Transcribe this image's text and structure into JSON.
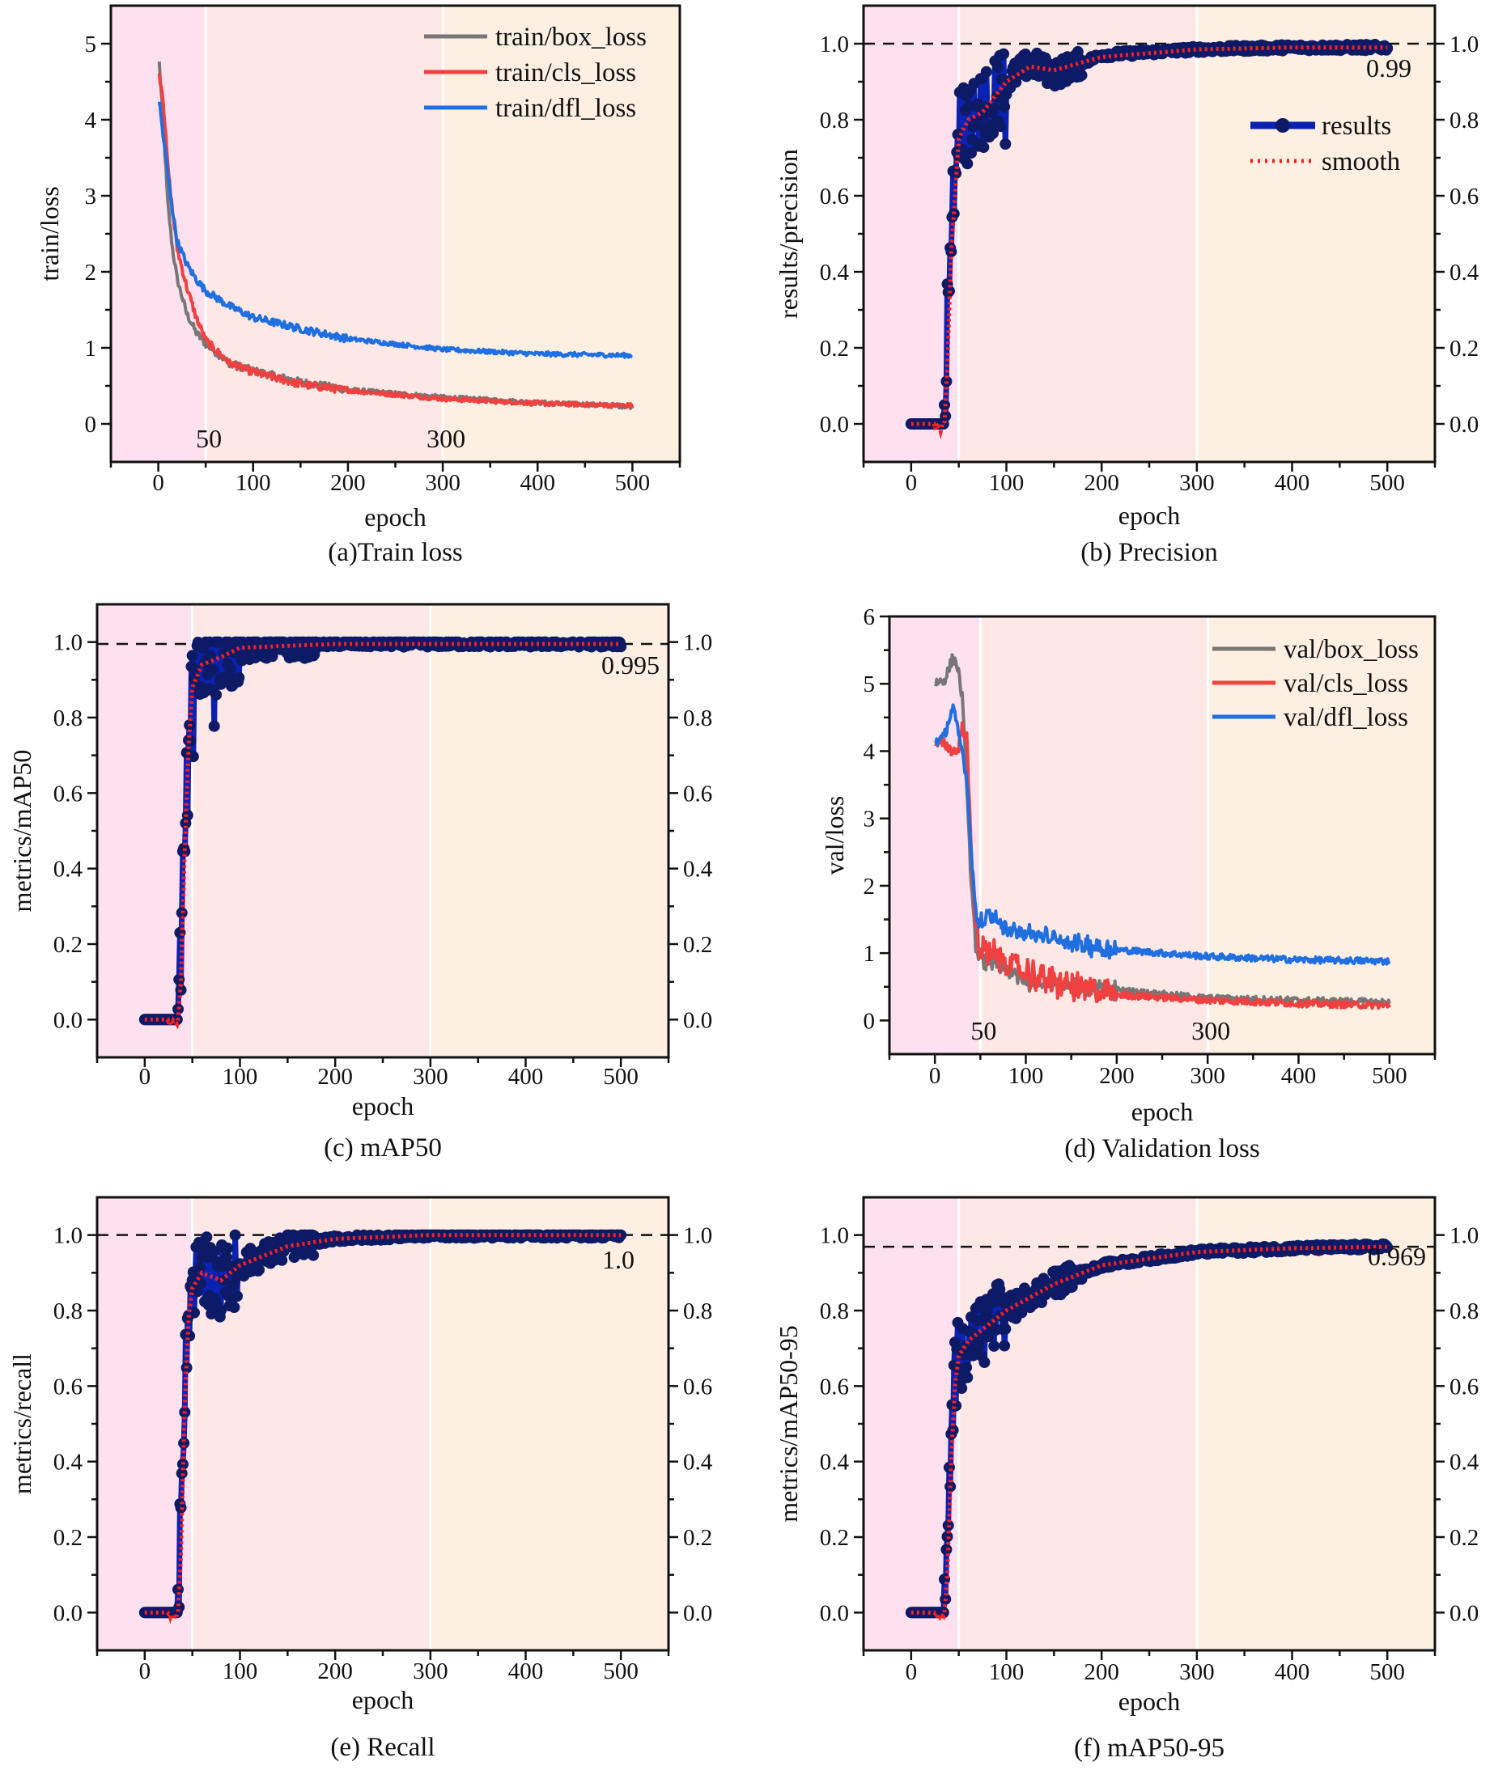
{
  "colors": {
    "bg_early": "#fde1ef",
    "bg_mid": "#fde8e6",
    "bg_late": "#fdf0e3",
    "box": "#777777",
    "cls": "#f04040",
    "dfl": "#1f6fe0",
    "results_line": "#0a22b4",
    "results_marker": "#0d1a66",
    "smooth": "#ff1f1f"
  },
  "chart_data": [
    {
      "id": "a",
      "type": "line",
      "caption": "(a)Train  loss",
      "xlabel": "epoch",
      "ylabel": "train/loss",
      "xlim": [
        -50,
        550
      ],
      "ylim": [
        -0.5,
        5.5
      ],
      "xticks": [
        "0",
        "100",
        "200",
        "300",
        "400",
        "500"
      ],
      "yticks": [
        "0",
        "1",
        "2",
        "3",
        "4",
        "5"
      ],
      "phase_marks": [
        "50",
        "300"
      ],
      "x": [
        1,
        5,
        10,
        15,
        20,
        30,
        40,
        50,
        75,
        100,
        150,
        200,
        300,
        400,
        500
      ],
      "series": [
        {
          "name": "train/box_loss",
          "color_key": "box",
          "values": [
            4.75,
            4.0,
            2.9,
            2.3,
            1.9,
            1.45,
            1.2,
            1.05,
            0.8,
            0.7,
            0.55,
            0.45,
            0.35,
            0.28,
            0.23
          ]
        },
        {
          "name": "train/cls_loss",
          "color_key": "cls",
          "values": [
            4.6,
            4.3,
            3.4,
            2.8,
            2.3,
            1.8,
            1.4,
            1.1,
            0.8,
            0.68,
            0.52,
            0.44,
            0.33,
            0.27,
            0.24
          ]
        },
        {
          "name": "train/dfl_loss",
          "color_key": "dfl",
          "values": [
            4.25,
            3.8,
            3.3,
            2.8,
            2.4,
            2.1,
            1.9,
            1.75,
            1.55,
            1.4,
            1.25,
            1.12,
            0.98,
            0.92,
            0.9
          ]
        }
      ],
      "legend": "top-right"
    },
    {
      "id": "b",
      "type": "line",
      "caption": "(b) Precision",
      "xlabel": "epoch",
      "ylabel": "results/precision",
      "xlim": [
        -50,
        550
      ],
      "ylim": [
        -0.1,
        1.1
      ],
      "xticks": [
        "0",
        "100",
        "200",
        "300",
        "400",
        "500"
      ],
      "yticks": [
        "0.0",
        "0.2",
        "0.4",
        "0.6",
        "0.8",
        "1.0"
      ],
      "reference_line": 1.0,
      "final_value": "0.99",
      "x": [
        0,
        35,
        38,
        42,
        50,
        60,
        75,
        100,
        125,
        150,
        200,
        300,
        400,
        500
      ],
      "series": [
        {
          "name": "results",
          "values": [
            0,
            0,
            0.3,
            0.55,
            0.8,
            0.78,
            0.82,
            0.9,
            0.95,
            0.92,
            0.97,
            0.985,
            0.99,
            0.99
          ]
        },
        {
          "name": "smooth",
          "values": [
            0,
            0,
            0.15,
            0.45,
            0.75,
            0.8,
            0.82,
            0.9,
            0.94,
            0.93,
            0.965,
            0.985,
            0.99,
            0.99
          ]
        }
      ],
      "legend": "right"
    },
    {
      "id": "c",
      "type": "line",
      "caption": "(c) mAP50",
      "xlabel": "epoch",
      "ylabel": "metrics/mAP50",
      "xlim": [
        -50,
        550
      ],
      "ylim": [
        -0.1,
        1.1
      ],
      "xticks": [
        "0",
        "100",
        "200",
        "300",
        "400",
        "500"
      ],
      "yticks": [
        "0.0",
        "0.2",
        "0.4",
        "0.6",
        "0.8",
        "1.0"
      ],
      "reference_line": 0.995,
      "final_value": "0.995",
      "x": [
        0,
        35,
        38,
        42,
        46,
        50,
        60,
        80,
        100,
        150,
        200,
        500
      ],
      "series": [
        {
          "name": "results",
          "values": [
            0,
            0,
            0.2,
            0.5,
            0.75,
            0.9,
            0.95,
            0.96,
            0.985,
            0.99,
            0.995,
            0.995
          ]
        },
        {
          "name": "smooth",
          "values": [
            0,
            0,
            0.1,
            0.45,
            0.72,
            0.88,
            0.94,
            0.96,
            0.985,
            0.99,
            0.995,
            0.995
          ]
        }
      ]
    },
    {
      "id": "d",
      "type": "line",
      "caption": "(d) Validation  loss",
      "xlabel": "epoch",
      "ylabel": "val/loss",
      "xlim": [
        -50,
        550
      ],
      "ylim": [
        -0.5,
        6
      ],
      "xticks": [
        "0",
        "100",
        "200",
        "300",
        "400",
        "500"
      ],
      "yticks": [
        "0",
        "1",
        "2",
        "3",
        "4",
        "5",
        "6"
      ],
      "phase_marks": [
        "50",
        "300"
      ],
      "x": [
        1,
        10,
        15,
        20,
        25,
        30,
        35,
        40,
        45,
        50,
        60,
        75,
        100,
        150,
        200,
        300,
        400,
        500
      ],
      "series": [
        {
          "name": "val/box_loss",
          "color_key": "box",
          "values": [
            5.02,
            5.05,
            5.2,
            5.4,
            5.25,
            4.8,
            3.5,
            2.0,
            1.1,
            0.9,
            0.9,
            0.75,
            0.6,
            0.5,
            0.45,
            0.33,
            0.3,
            0.27
          ]
        },
        {
          "name": "val/cls_loss",
          "color_key": "cls",
          "values": [
            4.1,
            4.12,
            4.05,
            4.0,
            4.0,
            4.35,
            4.2,
            2.5,
            1.4,
            1.0,
            1.0,
            0.9,
            0.7,
            0.5,
            0.38,
            0.3,
            0.25,
            0.22
          ]
        },
        {
          "name": "val/dfl_loss",
          "color_key": "dfl",
          "values": [
            4.15,
            4.2,
            4.45,
            4.65,
            4.3,
            4.0,
            3.6,
            2.5,
            1.6,
            1.45,
            1.55,
            1.4,
            1.3,
            1.15,
            1.05,
            0.95,
            0.9,
            0.88
          ]
        }
      ],
      "legend": "top-right"
    },
    {
      "id": "e",
      "type": "line",
      "caption": "(e) Recall",
      "xlabel": "epoch",
      "ylabel": "metrics/recall",
      "xlim": [
        -50,
        550
      ],
      "ylim": [
        -0.1,
        1.1
      ],
      "xticks": [
        "0",
        "100",
        "200",
        "300",
        "400",
        "500"
      ],
      "yticks": [
        "0.0",
        "0.2",
        "0.4",
        "0.6",
        "0.8",
        "1.0"
      ],
      "reference_line": 1.0,
      "final_value": "1.0",
      "x": [
        0,
        35,
        38,
        42,
        46,
        50,
        60,
        80,
        100,
        150,
        200,
        300,
        500
      ],
      "series": [
        {
          "name": "results",
          "values": [
            0,
            0,
            0.3,
            0.6,
            0.8,
            0.88,
            0.9,
            0.88,
            0.92,
            0.97,
            0.99,
            1.0,
            1.0
          ]
        },
        {
          "name": "smooth",
          "values": [
            0,
            0,
            0.15,
            0.55,
            0.78,
            0.86,
            0.9,
            0.88,
            0.92,
            0.97,
            0.99,
            1.0,
            1.0
          ]
        }
      ]
    },
    {
      "id": "f",
      "type": "line",
      "caption": "(f) mAP50-95",
      "xlabel": "epoch",
      "ylabel": "metrics/mAP50-95",
      "xlim": [
        -50,
        550
      ],
      "ylim": [
        -0.1,
        1.1
      ],
      "xticks": [
        "0",
        "100",
        "200",
        "300",
        "400",
        "500"
      ],
      "yticks": [
        "0.0",
        "0.2",
        "0.4",
        "0.6",
        "0.8",
        "1.0"
      ],
      "reference_line": 0.969,
      "final_value": "0.969",
      "x": [
        0,
        35,
        38,
        42,
        46,
        50,
        60,
        80,
        100,
        150,
        200,
        300,
        400,
        500
      ],
      "series": [
        {
          "name": "results",
          "values": [
            0,
            0,
            0.2,
            0.45,
            0.62,
            0.7,
            0.72,
            0.76,
            0.8,
            0.87,
            0.92,
            0.955,
            0.965,
            0.969
          ]
        },
        {
          "name": "smooth",
          "values": [
            0,
            0,
            0.1,
            0.4,
            0.6,
            0.68,
            0.72,
            0.76,
            0.8,
            0.87,
            0.92,
            0.955,
            0.965,
            0.969
          ]
        }
      ],
      "legend_series": [
        "results",
        "smooth"
      ]
    }
  ]
}
